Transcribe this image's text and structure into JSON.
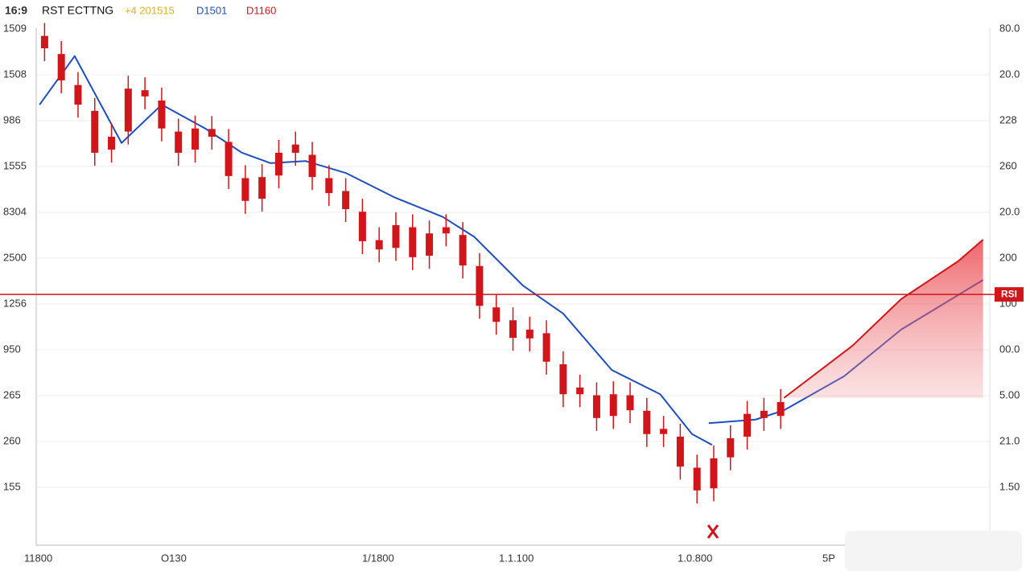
{
  "chart_data": {
    "type": "candlestick",
    "header": {
      "ratio": "16:9",
      "title": "RST ECTTNG",
      "legend_a": "+4 201515",
      "legend_b": "D1501",
      "legend_c": "D1160"
    },
    "left_axis_labels": [
      "1509",
      "1508",
      "986",
      "1555",
      "8304",
      "2500",
      "1256",
      "950",
      "265",
      "260",
      "155"
    ],
    "right_axis_labels": [
      "80.0",
      "20.0",
      "228",
      "260",
      "20.0",
      "200",
      "100",
      "00.0",
      "5.00",
      "21.0",
      "1.50"
    ],
    "x_labels": [
      "11800",
      "O130",
      "1/1800",
      "1.1.100",
      "1.0.800",
      "5P"
    ],
    "xlim": [
      -0.5,
      56.5
    ],
    "ylim": [
      0,
      100
    ],
    "color": "#d0161b",
    "open": [
      98.5,
      95.0,
      89.0,
      84.0,
      76.5,
      80.0,
      88.0,
      86.0,
      80.0,
      76.5,
      80.5,
      78.0,
      71.0,
      67.0,
      71.5,
      77.5,
      75.5,
      71.0,
      68.5,
      64.5,
      59.0,
      57.5,
      61.5,
      56.0,
      61.5,
      60.0,
      54.0,
      46.0,
      43.5,
      40.0,
      41.0,
      35.0,
      30.5,
      29.0,
      25.0,
      29.0,
      26.0,
      22.5,
      21.0,
      15.0,
      11.0,
      17.0,
      21.0,
      26.0,
      25.0
    ],
    "high": [
      101.0,
      97.5,
      91.5,
      86.5,
      81.5,
      90.8,
      90.5,
      88.5,
      82.5,
      83.1,
      83.0,
      80.5,
      73.5,
      73.7,
      78.4,
      80.0,
      78.0,
      73.5,
      71.0,
      67.0,
      61.5,
      64.4,
      64.0,
      62.8,
      64.0,
      62.5,
      56.5,
      48.5,
      46.0,
      44.2,
      43.5,
      37.5,
      33.0,
      31.5,
      31.7,
      31.5,
      28.5,
      25.0,
      23.5,
      17.5,
      19.3,
      23.2,
      27.9,
      28.5,
      30.2
    ],
    "low": [
      93.6,
      87.4,
      82.7,
      73.4,
      74.0,
      77.5,
      84.3,
      78.1,
      73.4,
      74.0,
      76.5,
      68.9,
      64.1,
      64.5,
      69.0,
      73.4,
      68.7,
      65.6,
      62.5,
      56.3,
      54.7,
      55.0,
      53.2,
      53.5,
      57.8,
      51.6,
      43.8,
      40.7,
      37.6,
      37.5,
      33.0,
      26.7,
      26.7,
      22.1,
      22.5,
      23.6,
      19.0,
      19.0,
      12.7,
      8.1,
      8.5,
      14.5,
      18.5,
      22.1,
      22.5
    ],
    "close": [
      96.1,
      89.9,
      85.2,
      75.9,
      79.0,
      88.3,
      86.8,
      80.6,
      75.9,
      80.6,
      79.0,
      71.4,
      66.6,
      71.2,
      75.9,
      75.9,
      71.2,
      68.1,
      65.0,
      58.8,
      57.2,
      61.9,
      55.7,
      60.3,
      60.3,
      54.1,
      46.3,
      43.2,
      40.1,
      41.7,
      35.5,
      29.2,
      29.2,
      24.6,
      29.2,
      26.1,
      21.5,
      21.5,
      15.2,
      10.6,
      16.8,
      20.7,
      25.4,
      24.6,
      27.7
    ],
    "lines": [
      {
        "color": "#1f4fbf",
        "x": [
          -0.3,
          1.8,
          4.6,
          7.0,
          9.6,
          11.8,
          13.5,
          15.6,
          18.0,
          20.9,
          23.8,
          25.7,
          28.6,
          31.0,
          33.9,
          36.8,
          38.7,
          39.9,
          null,
          39.7,
          42.5,
          44.2,
          47.8,
          51.2,
          56.1
        ],
        "values": [
          85.2,
          94.6,
          77.8,
          85.2,
          80.6,
          75.9,
          73.9,
          74.3,
          72.0,
          67.3,
          63.5,
          59.6,
          50.2,
          44.8,
          33.9,
          29.2,
          21.5,
          19.4,
          null,
          23.6,
          24.3,
          26.1,
          32.7,
          41.7,
          51.3
        ]
      },
      {
        "color": "#d0161b",
        "area": true,
        "x": [
          44.2,
          48.3,
          51.2,
          54.6,
          56.1
        ],
        "values": [
          28.5,
          38.6,
          47.6,
          54.9,
          59.1
        ]
      }
    ],
    "hline": {
      "value": 48.5,
      "label": "RSI",
      "color": "#d0161b"
    }
  }
}
